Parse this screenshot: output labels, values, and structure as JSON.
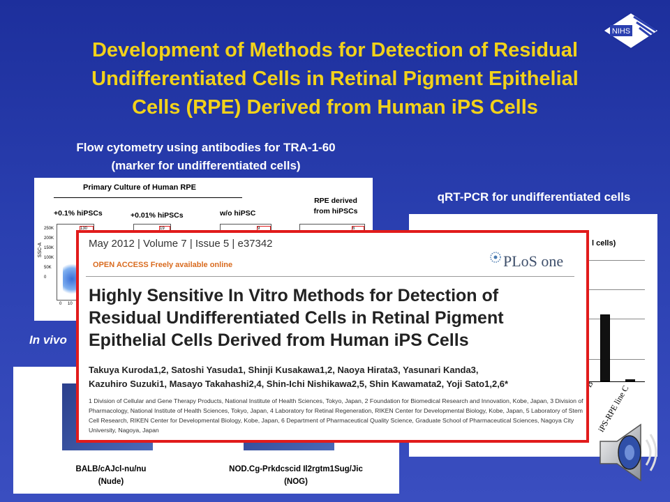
{
  "slide": {
    "title_lines": [
      "Development of Methods for Detection of Residual",
      "Undifferentiated Cells in Retinal Pigment Epithelial",
      "Cells (RPE) Derived from Human iPS Cells"
    ],
    "logo_text": "NIHS",
    "flow_heading_lines": [
      "Flow cytometry using antibodies for  TRA-1-60",
      "(marker for undifferentiated cells)"
    ],
    "qrt_heading": "qRT-PCR for undifferentiated cells",
    "invivo_label": "In vivo"
  },
  "flow_panel": {
    "group_title": "Primary Culture of Human RPE",
    "col_labels": [
      "+0.1%  hiPSCs",
      "+0.01%  hiPSCs",
      "w/o hiPSC"
    ],
    "rpe_label_lines": [
      "RPE derived",
      "from hiPSCs"
    ],
    "y_axis_label": "SSC-A",
    "y_ticks": [
      "250K",
      "200K",
      "150K",
      "100K",
      "50K",
      "0"
    ],
    "x_ticks": [
      "0",
      "10"
    ],
    "gate_counts": [
      "130",
      "19",
      "9",
      "6"
    ]
  },
  "qrt_panel": {
    "partial_text": "l cells)",
    "bar_values": [
      0.55,
      0.02
    ],
    "x_labels": [
      "line B",
      "iPS-RPE line C"
    ]
  },
  "mouse_panel": {
    "strains": [
      {
        "line1": "BALB/cAJcl-nu/nu",
        "line2": "(Nude)"
      },
      {
        "line1": "NOD.Cg-Prkdcscid  Il2rgtm1Sug/Jic",
        "line2": "(NOG)"
      }
    ]
  },
  "article": {
    "issue_line": "May 2012  |  Volume 7  |  Issue 5  |  e37342",
    "open_access": "OPEN ACCESS Freely available online",
    "journal": "PLoS one",
    "title_lines": [
      "Highly Sensitive In Vitro Methods for Detection of",
      "Residual Undifferentiated Cells in Retinal Pigment",
      "Epithelial Cells Derived from Human iPS Cells"
    ],
    "authors_lines": [
      "Takuya Kuroda1,2, Satoshi Yasuda1, Shinji Kusakawa1,2, Naoya Hirata3, Yasunari Kanda3,",
      "Kazuhiro Suzuki1, Masayo Takahashi2,4, Shin-Ichi Nishikawa2,5, Shin Kawamata2, Yoji Sato1,2,6*"
    ],
    "affiliations": "1 Division of Cellular and Gene Therapy Products, National Institute of Health Sciences, Tokyo, Japan, 2 Foundation for Biomedical Research and Innovation, Kobe, Japan, 3 Division of Pharmacology, National Institute of Health Sciences, Tokyo, Japan, 4 Laboratory for Retinal Regeneration, RIKEN Center for Developmental Biology, Kobe, Japan, 5 Laboratory of Stem Cell Research, RIKEN Center for Developmental Biology, Kobe, Japan, 6 Department of Pharmaceutical Quality Science, Graduate School of Pharmaceutical Sciences, Nagoya City University, Nagoya, Japan"
  },
  "colors": {
    "title": "#f2d21a",
    "article_border": "#e11b1b",
    "background": "#2a3fb0"
  },
  "icons": [
    "nihs-logo-icon",
    "speaker-icon"
  ]
}
